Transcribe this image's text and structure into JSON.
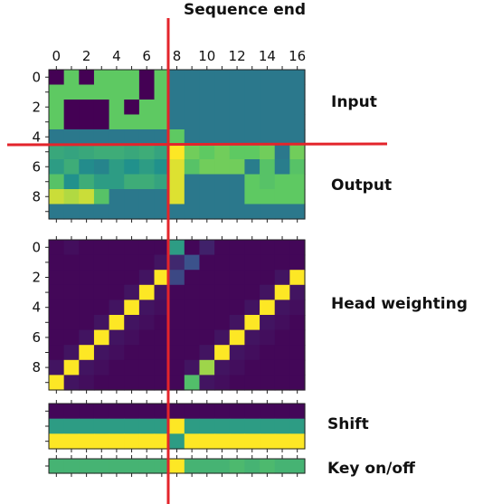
{
  "labels": {
    "sequence_end": "Sequence end",
    "input": "Input",
    "output": "Output",
    "head_weighting": "Head weighting",
    "shift": "Shift",
    "key_on_off": "Key on/off"
  },
  "chart_data": {
    "type": "heatmap",
    "colormap": "viridis",
    "sequence_end_column": 7.5,
    "grid_lines": false,
    "panels": [
      {
        "id": "input-output",
        "x_ticks": [
          0,
          2,
          4,
          6,
          8,
          10,
          12,
          14,
          16
        ],
        "y_ticks": [
          0,
          2,
          4,
          6,
          8
        ],
        "values": [
          [
            0,
            0.75,
            0,
            0.75,
            0.75,
            0.75,
            0,
            0.75,
            0.4,
            0.4,
            0.4,
            0.4,
            0.4,
            0.4,
            0.4,
            0.4,
            0.4
          ],
          [
            0.75,
            0.75,
            0.75,
            0.75,
            0.75,
            0.75,
            0,
            0.75,
            0.4,
            0.4,
            0.4,
            0.4,
            0.4,
            0.4,
            0.4,
            0.4,
            0.4
          ],
          [
            0.75,
            0,
            0,
            0,
            0.75,
            0,
            0.75,
            0.75,
            0.4,
            0.4,
            0.4,
            0.4,
            0.4,
            0.4,
            0.4,
            0.4,
            0.4
          ],
          [
            0.75,
            0,
            0,
            0,
            0.75,
            0.75,
            0.75,
            0.75,
            0.4,
            0.4,
            0.4,
            0.4,
            0.4,
            0.4,
            0.4,
            0.4,
            0.4
          ],
          [
            0.4,
            0.4,
            0.4,
            0.4,
            0.4,
            0.4,
            0.4,
            0.4,
            0.75,
            0.4,
            0.4,
            0.4,
            0.4,
            0.4,
            0.4,
            0.4,
            0.4
          ],
          [
            0.6,
            0.58,
            0.6,
            0.62,
            0.62,
            0.6,
            0.62,
            0.58,
            1,
            0.78,
            0.75,
            0.78,
            0.75,
            0.75,
            0.78,
            0.4,
            0.78
          ],
          [
            0.55,
            0.62,
            0.48,
            0.45,
            0.55,
            0.5,
            0.55,
            0.5,
            0.95,
            0.72,
            0.78,
            0.78,
            0.78,
            0.42,
            0.72,
            0.42,
            0.72
          ],
          [
            0.72,
            0.5,
            0.62,
            0.55,
            0.55,
            0.62,
            0.62,
            0.58,
            0.95,
            0.4,
            0.4,
            0.4,
            0.4,
            0.75,
            0.72,
            0.75,
            0.75
          ],
          [
            0.92,
            0.88,
            0.92,
            0.72,
            0.4,
            0.4,
            0.4,
            0.4,
            0.95,
            0.4,
            0.4,
            0.4,
            0.4,
            0.75,
            0.75,
            0.75,
            0.75
          ],
          [
            0.4,
            0.4,
            0.4,
            0.4,
            0.4,
            0.4,
            0.4,
            0.4,
            0.4,
            0.4,
            0.4,
            0.4,
            0.4,
            0.4,
            0.4,
            0.4,
            0.4
          ]
        ]
      },
      {
        "id": "head-weighting",
        "x_ticks": [],
        "y_ticks": [
          0,
          2,
          4,
          6,
          8
        ],
        "values": [
          [
            0.02,
            0.04,
            0.02,
            0.02,
            0.02,
            0.02,
            0.02,
            0.02,
            0.55,
            0.02,
            0.1,
            0.02,
            0.02,
            0.02,
            0.02,
            0.02,
            0.02
          ],
          [
            0.02,
            0.02,
            0.02,
            0.02,
            0.02,
            0.02,
            0.02,
            0.06,
            0.12,
            0.25,
            0.02,
            0.02,
            0.02,
            0.02,
            0.02,
            0.02,
            0.02
          ],
          [
            0.02,
            0.02,
            0.02,
            0.02,
            0.02,
            0.02,
            0.06,
            1,
            0.22,
            0.02,
            0.02,
            0.02,
            0.02,
            0.02,
            0.02,
            0.06,
            1
          ],
          [
            0.02,
            0.02,
            0.02,
            0.02,
            0.02,
            0.06,
            1,
            0.06,
            0.02,
            0.02,
            0.02,
            0.02,
            0.02,
            0.02,
            0.06,
            1,
            0.06
          ],
          [
            0.02,
            0.02,
            0.02,
            0.02,
            0.06,
            1,
            0.06,
            0.04,
            0.02,
            0.02,
            0.02,
            0.02,
            0.02,
            0.06,
            1,
            0.06,
            0.04
          ],
          [
            0.02,
            0.02,
            0.02,
            0.06,
            1,
            0.06,
            0.04,
            0.02,
            0.02,
            0.02,
            0.02,
            0.02,
            0.06,
            1,
            0.06,
            0.04,
            0.02
          ],
          [
            0.02,
            0.02,
            0.06,
            1,
            0.06,
            0.04,
            0.02,
            0.02,
            0.02,
            0.02,
            0.02,
            0.06,
            1,
            0.06,
            0.04,
            0.02,
            0.02
          ],
          [
            0.02,
            0.06,
            1,
            0.06,
            0.04,
            0.02,
            0.02,
            0.02,
            0.02,
            0.02,
            0.06,
            1,
            0.06,
            0.04,
            0.02,
            0.02,
            0.02
          ],
          [
            0.06,
            1,
            0.06,
            0.04,
            0.02,
            0.02,
            0.02,
            0.02,
            0.02,
            0.06,
            0.85,
            0.06,
            0.04,
            0.02,
            0.02,
            0.02,
            0.02
          ],
          [
            1,
            0.06,
            0.04,
            0.02,
            0.02,
            0.02,
            0.02,
            0.02,
            0.02,
            0.7,
            0.06,
            0.04,
            0.02,
            0.02,
            0.02,
            0.02,
            0.02
          ]
        ]
      },
      {
        "id": "shift",
        "x_ticks": [],
        "y_ticks": [],
        "values": [
          [
            0.02,
            0.02,
            0.02,
            0.02,
            0.02,
            0.02,
            0.02,
            0.02,
            0.02,
            0.02,
            0.02,
            0.02,
            0.02,
            0.02,
            0.02,
            0.02,
            0.02
          ],
          [
            0.55,
            0.55,
            0.55,
            0.55,
            0.55,
            0.55,
            0.55,
            0.55,
            1,
            0.55,
            0.55,
            0.55,
            0.55,
            0.55,
            0.55,
            0.55,
            0.55
          ],
          [
            1,
            1,
            1,
            1,
            1,
            1,
            1,
            1,
            0.55,
            1,
            1,
            1,
            1,
            1,
            1,
            1,
            1
          ]
        ]
      },
      {
        "id": "key-on-off",
        "x_ticks": [],
        "y_ticks": [],
        "values": [
          [
            0.65,
            0.65,
            0.65,
            0.65,
            0.65,
            0.65,
            0.65,
            0.65,
            1,
            0.65,
            0.65,
            0.65,
            0.68,
            0.65,
            0.68,
            0.65,
            0.65
          ]
        ]
      }
    ]
  }
}
